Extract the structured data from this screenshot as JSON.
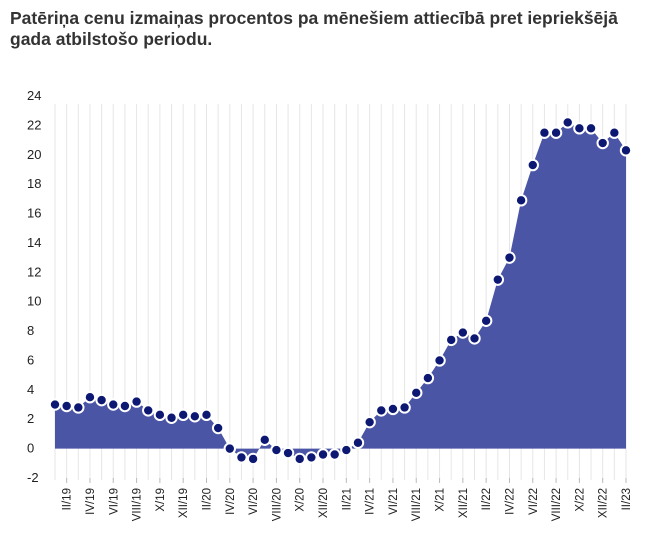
{
  "chart_data": {
    "type": "area",
    "title": "Patēriņa cenu izmaiņas procentos pa mēnešiem attiecībā pret iepriekšējā gada atbilstošo periodu.",
    "xlabel": "",
    "ylabel": "",
    "ylim": [
      -2,
      24
    ],
    "yticks": [
      -2,
      0,
      2,
      4,
      6,
      8,
      10,
      12,
      14,
      16,
      18,
      20,
      22,
      24
    ],
    "grid": "vertical",
    "colors": {
      "area": "#4a55a6",
      "marker": "#0d1873",
      "marker_edge": "#ffffff"
    },
    "x": [
      "I/19",
      "II/19",
      "III/19",
      "IV/19",
      "V/19",
      "VI/19",
      "VII/19",
      "VIII/19",
      "IX/19",
      "X/19",
      "XI/19",
      "XII/19",
      "I/20",
      "II/20",
      "III/20",
      "IV/20",
      "V/20",
      "VI/20",
      "VII/20",
      "VIII/20",
      "IX/20",
      "X/20",
      "XI/20",
      "XII/20",
      "I/21",
      "II/21",
      "III/21",
      "IV/21",
      "V/21",
      "VI/21",
      "VII/21",
      "VIII/21",
      "IX/21",
      "X/21",
      "XI/21",
      "XII/21",
      "I/22",
      "II/22",
      "III/22",
      "IV/22",
      "V/22",
      "VI/22",
      "VII/22",
      "VIII/22",
      "IX/22",
      "X/22",
      "XI/22",
      "XII/22",
      "I/23",
      "II/23"
    ],
    "xtick_labels": [
      "II/19",
      "IV/19",
      "VI/19",
      "VIII/19",
      "X/19",
      "XII/19",
      "II/20",
      "IV/20",
      "VI/20",
      "VIII/20",
      "X/20",
      "XII/20",
      "II/21",
      "IV/21",
      "VI/21",
      "VIII/21",
      "X/21",
      "XII/21",
      "II/22",
      "IV/22",
      "VI/22",
      "VIII/22",
      "X/22",
      "XII/22",
      "II/23"
    ],
    "values": [
      3.0,
      2.9,
      2.8,
      3.5,
      3.3,
      3.0,
      2.9,
      3.2,
      2.6,
      2.3,
      2.1,
      2.3,
      2.2,
      2.3,
      1.4,
      0.0,
      -0.6,
      -0.7,
      0.6,
      -0.1,
      -0.3,
      -0.7,
      -0.6,
      -0.4,
      -0.4,
      -0.1,
      0.4,
      1.8,
      2.6,
      2.7,
      2.8,
      3.8,
      4.8,
      6.0,
      7.4,
      7.9,
      7.5,
      8.7,
      11.5,
      13.0,
      16.9,
      19.3,
      21.5,
      21.5,
      22.2,
      21.8,
      21.8,
      20.8,
      21.5,
      20.3
    ]
  }
}
